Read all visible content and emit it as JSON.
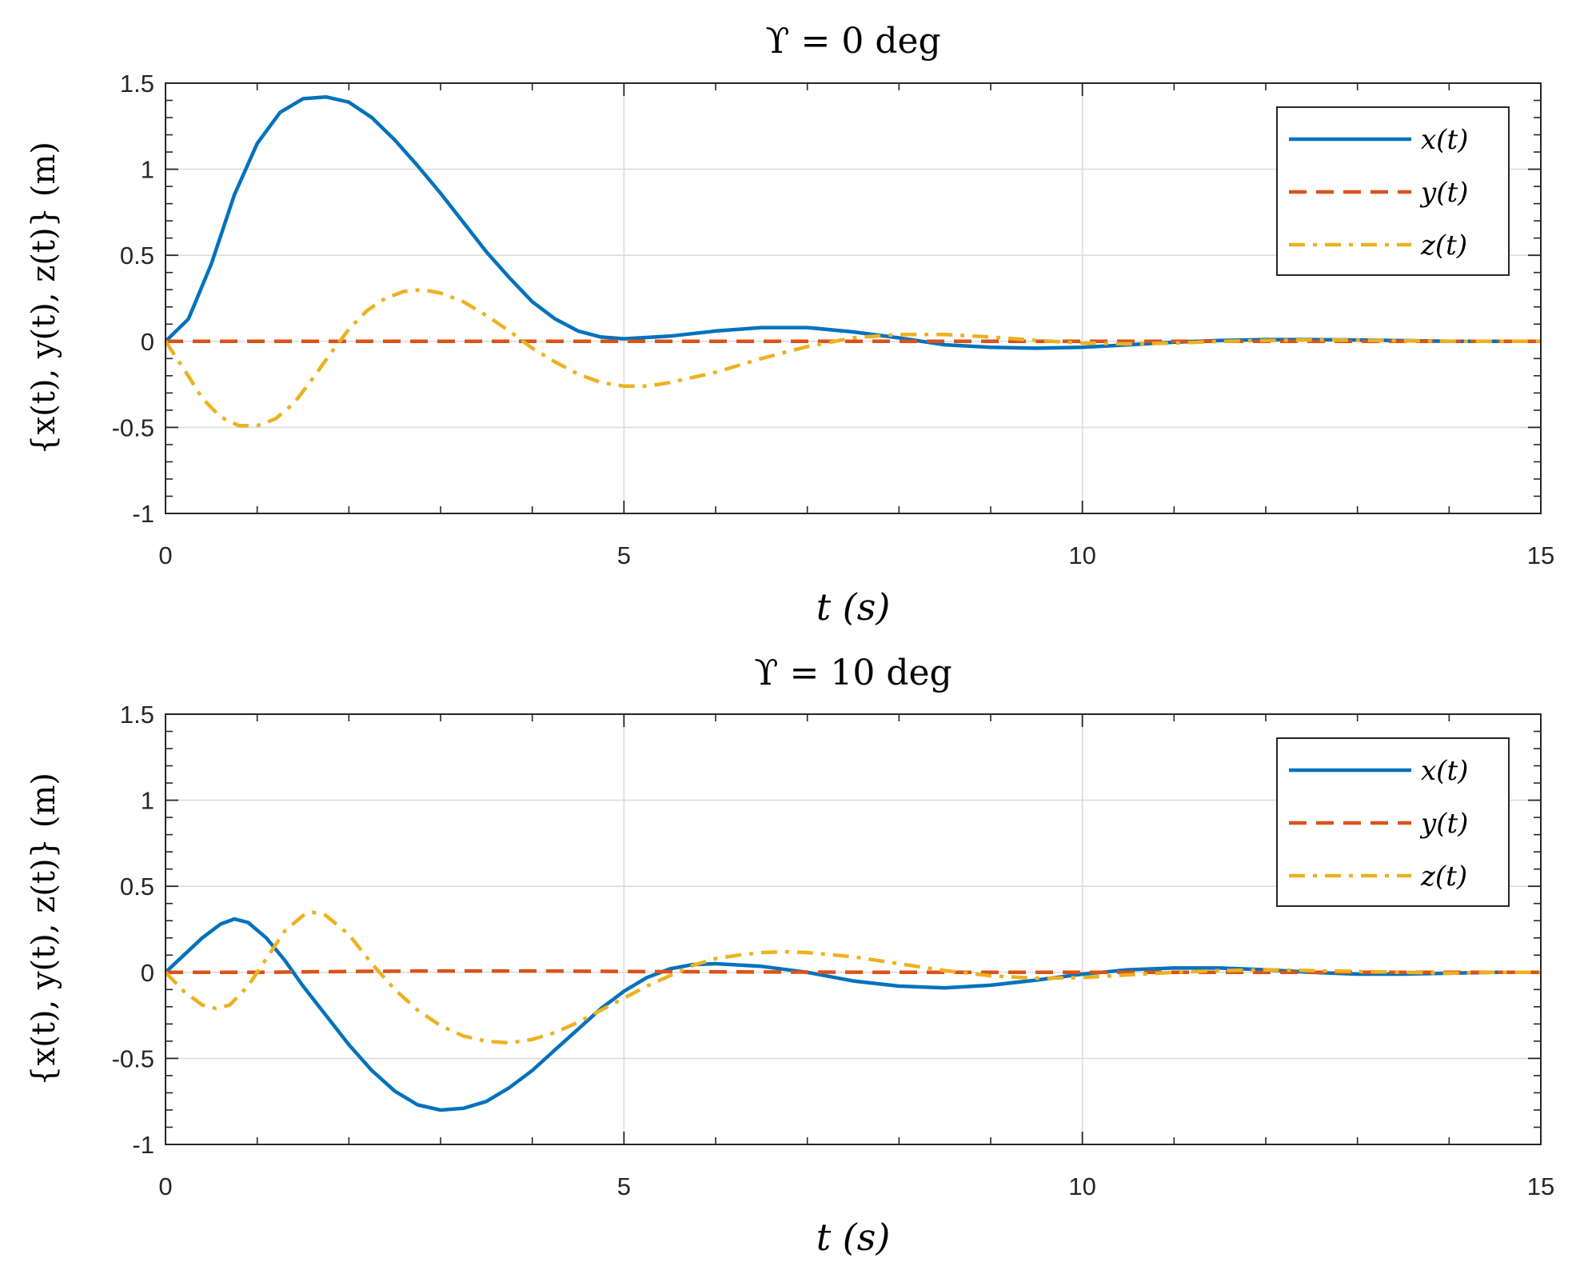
{
  "chart_data": [
    {
      "type": "line",
      "title": "ϒ = 0 deg",
      "xlabel": "t (s)",
      "ylabel": "{x(t), y(t), z(t)} (m)",
      "xlim": [
        0,
        15
      ],
      "ylim": [
        -1,
        1.5
      ],
      "xticks": [
        0,
        5,
        10,
        15
      ],
      "xtick_labels": [
        "0",
        "5",
        "10",
        "15"
      ],
      "yticks": [
        -1,
        -0.5,
        0,
        0.5,
        1,
        1.5
      ],
      "ytick_labels": [
        "-1",
        "-0.5",
        "0",
        "0.5",
        "1",
        "1.5"
      ],
      "grid": true,
      "legend_position": "top-right",
      "series": [
        {
          "name": "x(t)",
          "color": "#0072BD",
          "style": "solid",
          "points": [
            [
              0,
              0
            ],
            [
              0.25,
              0.13
            ],
            [
              0.5,
              0.45
            ],
            [
              0.75,
              0.85
            ],
            [
              1.0,
              1.15
            ],
            [
              1.25,
              1.33
            ],
            [
              1.5,
              1.41
            ],
            [
              1.75,
              1.42
            ],
            [
              2.0,
              1.39
            ],
            [
              2.25,
              1.3
            ],
            [
              2.5,
              1.17
            ],
            [
              2.75,
              1.02
            ],
            [
              3.0,
              0.86
            ],
            [
              3.25,
              0.69
            ],
            [
              3.5,
              0.52
            ],
            [
              3.75,
              0.37
            ],
            [
              4.0,
              0.23
            ],
            [
              4.25,
              0.13
            ],
            [
              4.5,
              0.06
            ],
            [
              4.75,
              0.025
            ],
            [
              5.0,
              0.015
            ],
            [
              5.5,
              0.03
            ],
            [
              6.0,
              0.06
            ],
            [
              6.5,
              0.08
            ],
            [
              7.0,
              0.08
            ],
            [
              7.5,
              0.055
            ],
            [
              8.0,
              0.02
            ],
            [
              8.5,
              -0.02
            ],
            [
              9.0,
              -0.035
            ],
            [
              9.5,
              -0.04
            ],
            [
              10.0,
              -0.035
            ],
            [
              10.5,
              -0.02
            ],
            [
              11.0,
              -0.005
            ],
            [
              11.5,
              0.005
            ],
            [
              12.0,
              0.01
            ],
            [
              12.5,
              0.01
            ],
            [
              13.0,
              0.008
            ],
            [
              13.5,
              0.004
            ],
            [
              14.0,
              0.0
            ],
            [
              14.5,
              0.0
            ],
            [
              15.0,
              0.0
            ]
          ]
        },
        {
          "name": "y(t)",
          "color": "#D95319",
          "style": "dashed",
          "points": [
            [
              0,
              0
            ],
            [
              15,
              0
            ]
          ]
        },
        {
          "name": "z(t)",
          "color": "#EDB120",
          "style": "dashdot",
          "points": [
            [
              0,
              0
            ],
            [
              0.2,
              -0.16
            ],
            [
              0.4,
              -0.33
            ],
            [
              0.6,
              -0.44
            ],
            [
              0.8,
              -0.49
            ],
            [
              1.0,
              -0.49
            ],
            [
              1.2,
              -0.45
            ],
            [
              1.4,
              -0.36
            ],
            [
              1.6,
              -0.22
            ],
            [
              1.8,
              -0.07
            ],
            [
              2.0,
              0.07
            ],
            [
              2.2,
              0.18
            ],
            [
              2.4,
              0.25
            ],
            [
              2.6,
              0.29
            ],
            [
              2.8,
              0.3
            ],
            [
              3.0,
              0.28
            ],
            [
              3.25,
              0.23
            ],
            [
              3.5,
              0.15
            ],
            [
              3.75,
              0.06
            ],
            [
              4.0,
              -0.04
            ],
            [
              4.25,
              -0.12
            ],
            [
              4.5,
              -0.19
            ],
            [
              4.75,
              -0.24
            ],
            [
              5.0,
              -0.26
            ],
            [
              5.25,
              -0.26
            ],
            [
              5.5,
              -0.24
            ],
            [
              6.0,
              -0.18
            ],
            [
              6.5,
              -0.1
            ],
            [
              7.0,
              -0.03
            ],
            [
              7.5,
              0.02
            ],
            [
              8.0,
              0.04
            ],
            [
              8.5,
              0.04
            ],
            [
              9.0,
              0.025
            ],
            [
              9.5,
              0.005
            ],
            [
              10.0,
              -0.01
            ],
            [
              10.5,
              -0.015
            ],
            [
              11.0,
              -0.01
            ],
            [
              11.5,
              0.0
            ],
            [
              12.0,
              0.005
            ],
            [
              12.5,
              0.008
            ],
            [
              13.0,
              0.006
            ],
            [
              13.5,
              0.003
            ],
            [
              14.0,
              0.0
            ],
            [
              15.0,
              0.0
            ]
          ]
        }
      ]
    },
    {
      "type": "line",
      "title": "ϒ = 10 deg",
      "xlabel": "t (s)",
      "ylabel": "{x(t), y(t), z(t)} (m)",
      "xlim": [
        0,
        15
      ],
      "ylim": [
        -1,
        1.5
      ],
      "xticks": [
        0,
        5,
        10,
        15
      ],
      "xtick_labels": [
        "0",
        "5",
        "10",
        "15"
      ],
      "yticks": [
        -1,
        -0.5,
        0,
        0.5,
        1,
        1.5
      ],
      "ytick_labels": [
        "-1",
        "-0.5",
        "0",
        "0.5",
        "1",
        "1.5"
      ],
      "grid": true,
      "legend_position": "top-right",
      "series": [
        {
          "name": "x(t)",
          "color": "#0072BD",
          "style": "solid",
          "points": [
            [
              0,
              0
            ],
            [
              0.2,
              0.1
            ],
            [
              0.4,
              0.2
            ],
            [
              0.6,
              0.28
            ],
            [
              0.75,
              0.31
            ],
            [
              0.9,
              0.29
            ],
            [
              1.1,
              0.2
            ],
            [
              1.3,
              0.07
            ],
            [
              1.5,
              -0.08
            ],
            [
              1.75,
              -0.25
            ],
            [
              2.0,
              -0.42
            ],
            [
              2.25,
              -0.57
            ],
            [
              2.5,
              -0.69
            ],
            [
              2.75,
              -0.77
            ],
            [
              3.0,
              -0.8
            ],
            [
              3.25,
              -0.79
            ],
            [
              3.5,
              -0.75
            ],
            [
              3.75,
              -0.67
            ],
            [
              4.0,
              -0.57
            ],
            [
              4.25,
              -0.45
            ],
            [
              4.5,
              -0.33
            ],
            [
              4.75,
              -0.21
            ],
            [
              5.0,
              -0.11
            ],
            [
              5.25,
              -0.03
            ],
            [
              5.5,
              0.02
            ],
            [
              5.75,
              0.045
            ],
            [
              6.0,
              0.05
            ],
            [
              6.5,
              0.035
            ],
            [
              7.0,
              0.0
            ],
            [
              7.5,
              -0.05
            ],
            [
              8.0,
              -0.08
            ],
            [
              8.5,
              -0.09
            ],
            [
              9.0,
              -0.075
            ],
            [
              9.5,
              -0.045
            ],
            [
              10.0,
              -0.01
            ],
            [
              10.5,
              0.015
            ],
            [
              11.0,
              0.025
            ],
            [
              11.5,
              0.025
            ],
            [
              12.0,
              0.015
            ],
            [
              12.5,
              0.0
            ],
            [
              13.0,
              -0.01
            ],
            [
              13.5,
              -0.01
            ],
            [
              14.0,
              -0.005
            ],
            [
              14.5,
              0.0
            ],
            [
              15.0,
              0.0
            ]
          ]
        },
        {
          "name": "y(t)",
          "color": "#D95319",
          "style": "dashed",
          "points": [
            [
              0,
              0
            ],
            [
              1,
              0
            ],
            [
              2,
              0.005
            ],
            [
              3,
              0.008
            ],
            [
              4,
              0.008
            ],
            [
              5,
              0.005
            ],
            [
              6,
              0.003
            ],
            [
              8,
              0.0
            ],
            [
              15,
              0.0
            ]
          ]
        },
        {
          "name": "z(t)",
          "color": "#EDB120",
          "style": "dashdot",
          "points": [
            [
              0,
              0
            ],
            [
              0.2,
              -0.11
            ],
            [
              0.4,
              -0.19
            ],
            [
              0.55,
              -0.21
            ],
            [
              0.7,
              -0.19
            ],
            [
              0.9,
              -0.08
            ],
            [
              1.1,
              0.08
            ],
            [
              1.3,
              0.24
            ],
            [
              1.5,
              0.33
            ],
            [
              1.6,
              0.35
            ],
            [
              1.75,
              0.33
            ],
            [
              2.0,
              0.22
            ],
            [
              2.25,
              0.05
            ],
            [
              2.5,
              -0.1
            ],
            [
              2.75,
              -0.22
            ],
            [
              3.0,
              -0.31
            ],
            [
              3.25,
              -0.37
            ],
            [
              3.5,
              -0.4
            ],
            [
              3.75,
              -0.41
            ],
            [
              4.0,
              -0.39
            ],
            [
              4.25,
              -0.35
            ],
            [
              4.5,
              -0.29
            ],
            [
              4.75,
              -0.22
            ],
            [
              5.0,
              -0.15
            ],
            [
              5.25,
              -0.08
            ],
            [
              5.5,
              -0.02
            ],
            [
              5.75,
              0.04
            ],
            [
              6.0,
              0.08
            ],
            [
              6.25,
              0.1
            ],
            [
              6.5,
              0.115
            ],
            [
              6.75,
              0.12
            ],
            [
              7.0,
              0.115
            ],
            [
              7.5,
              0.09
            ],
            [
              8.0,
              0.05
            ],
            [
              8.5,
              0.01
            ],
            [
              9.0,
              -0.02
            ],
            [
              9.5,
              -0.035
            ],
            [
              10.0,
              -0.03
            ],
            [
              10.5,
              -0.015
            ],
            [
              11.0,
              0.0
            ],
            [
              11.5,
              0.01
            ],
            [
              12.0,
              0.015
            ],
            [
              12.5,
              0.01
            ],
            [
              13.0,
              0.005
            ],
            [
              13.5,
              0.0
            ],
            [
              14.0,
              -0.005
            ],
            [
              14.5,
              0.0
            ],
            [
              15.0,
              0.0
            ]
          ]
        }
      ]
    }
  ]
}
